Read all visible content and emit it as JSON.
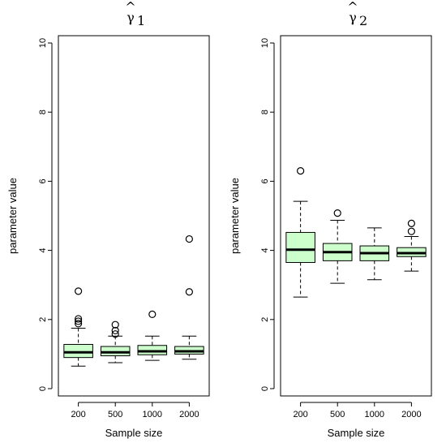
{
  "chart_data": [
    {
      "type": "box",
      "title_base": "γ",
      "title_subscript": "1",
      "title_hat": "^",
      "xlabel": "Sample size",
      "ylabel": "parameter value",
      "ylim": [
        0,
        10
      ],
      "yticks": [
        0,
        2,
        4,
        6,
        8,
        10
      ],
      "categories": [
        "200",
        "500",
        "1000",
        "2000"
      ],
      "fill": "#ccffcc",
      "boxes": [
        {
          "category": "200",
          "lower_whisker": 0.65,
          "q1": 0.9,
          "median": 1.05,
          "q3": 1.28,
          "upper_whisker": 1.75,
          "outliers": [
            1.88,
            1.95,
            2.02,
            2.82
          ]
        },
        {
          "category": "500",
          "lower_whisker": 0.75,
          "q1": 0.95,
          "median": 1.05,
          "q3": 1.22,
          "upper_whisker": 1.52,
          "outliers": [
            1.58,
            1.68,
            1.85
          ]
        },
        {
          "category": "1000",
          "lower_whisker": 0.82,
          "q1": 0.98,
          "median": 1.08,
          "q3": 1.25,
          "upper_whisker": 1.52,
          "outliers": [
            2.15
          ]
        },
        {
          "category": "2000",
          "lower_whisker": 0.85,
          "q1": 1.0,
          "median": 1.08,
          "q3": 1.22,
          "upper_whisker": 1.52,
          "outliers": [
            2.8,
            4.33
          ]
        }
      ]
    },
    {
      "type": "box",
      "title_base": "γ",
      "title_subscript": "2",
      "title_hat": "^",
      "xlabel": "Sample size",
      "ylabel": "parameter value",
      "ylim": [
        0,
        10
      ],
      "yticks": [
        0,
        2,
        4,
        6,
        8,
        10
      ],
      "categories": [
        "200",
        "500",
        "1000",
        "2000"
      ],
      "fill": "#ccffcc",
      "boxes": [
        {
          "category": "200",
          "lower_whisker": 2.65,
          "q1": 3.65,
          "median": 4.02,
          "q3": 4.52,
          "upper_whisker": 5.42,
          "outliers": [
            6.3
          ]
        },
        {
          "category": "500",
          "lower_whisker": 3.05,
          "q1": 3.7,
          "median": 3.95,
          "q3": 4.2,
          "upper_whisker": 4.87,
          "outliers": [
            5.08
          ]
        },
        {
          "category": "1000",
          "lower_whisker": 3.15,
          "q1": 3.7,
          "median": 3.92,
          "q3": 4.13,
          "upper_whisker": 4.65,
          "outliers": []
        },
        {
          "category": "2000",
          "lower_whisker": 3.4,
          "q1": 3.82,
          "median": 3.92,
          "q3": 4.08,
          "upper_whisker": 4.4,
          "outliers": [
            4.55,
            4.78
          ]
        }
      ]
    }
  ]
}
